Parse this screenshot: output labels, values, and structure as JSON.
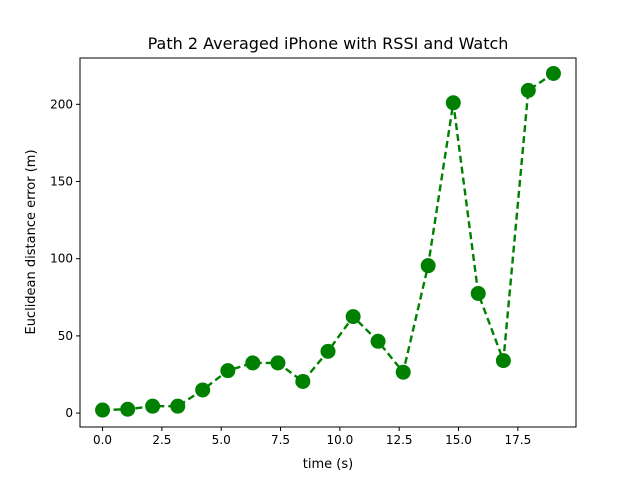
{
  "chart_data": {
    "type": "line",
    "title": "Path 2 Averaged iPhone with RSSI and Watch",
    "xlabel": "time (s)",
    "ylabel": "Euclidean distance error (m)",
    "xlim": [
      -0.95,
      19.95
    ],
    "ylim": [
      -9,
      230
    ],
    "xticks": [
      0.0,
      2.5,
      5.0,
      7.5,
      10.0,
      12.5,
      15.0,
      17.5
    ],
    "xtick_labels": [
      "0.0",
      "2.5",
      "5.0",
      "7.5",
      "10.0",
      "12.5",
      "15.0",
      "17.5"
    ],
    "yticks": [
      0,
      50,
      100,
      150,
      200
    ],
    "ytick_labels": [
      "0",
      "50",
      "100",
      "150",
      "200"
    ],
    "grid": false,
    "series": [
      {
        "color": "#008000",
        "line_style": "dashed",
        "marker": "circle",
        "x": [
          0.0,
          1.06,
          2.11,
          3.17,
          4.22,
          5.28,
          6.33,
          7.39,
          8.44,
          9.5,
          10.56,
          11.61,
          12.67,
          13.72,
          14.78,
          15.83,
          16.89,
          17.94,
          19.0
        ],
        "y": [
          2,
          2.5,
          4.5,
          4.5,
          15,
          27.5,
          32.5,
          32.5,
          20.5,
          40,
          62.5,
          46.5,
          26.5,
          95.5,
          201,
          77.5,
          34,
          209,
          220
        ]
      }
    ]
  }
}
